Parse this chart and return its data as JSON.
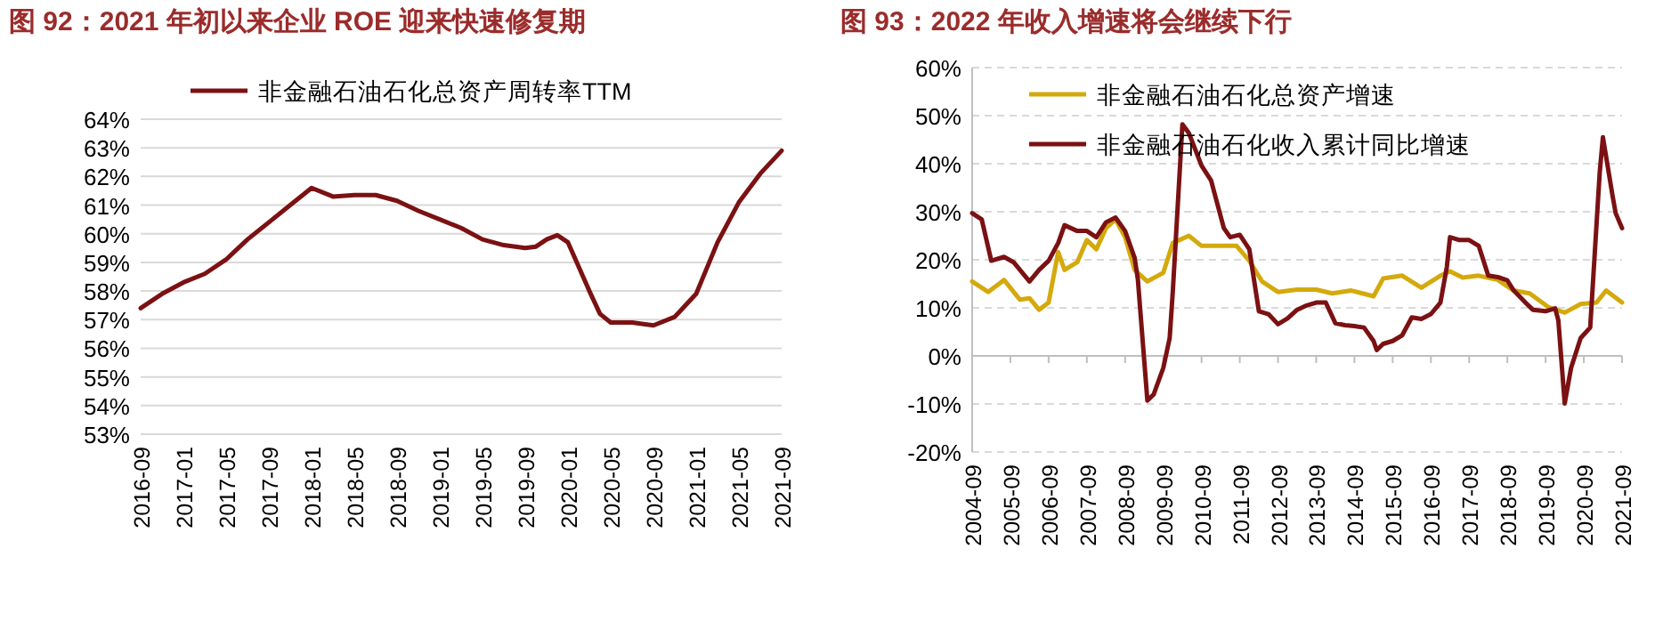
{
  "chart_data": [
    {
      "type": "line",
      "title": "图 92：2021 年初以来企业 ROE 迎来快速修复期",
      "legend": "top",
      "grid": "y",
      "xlim": [
        "2016-09",
        "2021-09"
      ],
      "xticks": [
        "2016-09",
        "2017-01",
        "2017-05",
        "2017-09",
        "2018-01",
        "2018-05",
        "2018-09",
        "2019-01",
        "2019-05",
        "2019-09",
        "2020-01",
        "2020-05",
        "2020-09",
        "2021-01",
        "2021-05",
        "2021-09"
      ],
      "ylim": [
        53,
        64
      ],
      "yticks": [
        {
          "value": 53,
          "label": "53%"
        },
        {
          "value": 54,
          "label": "54%"
        },
        {
          "value": 55,
          "label": "55%"
        },
        {
          "value": 56,
          "label": "56%"
        },
        {
          "value": 57,
          "label": "57%"
        },
        {
          "value": 58,
          "label": "58%"
        },
        {
          "value": 59,
          "label": "59%"
        },
        {
          "value": 60,
          "label": "60%"
        },
        {
          "value": 61,
          "label": "61%"
        },
        {
          "value": 62,
          "label": "62%"
        },
        {
          "value": 63,
          "label": "63%"
        },
        {
          "value": 64,
          "label": "64%"
        }
      ],
      "series": [
        {
          "name": "非金融石油石化总资产周转率TTM",
          "color": "#7b1113",
          "x": [
            "2016-09",
            "2016-11",
            "2017-01",
            "2017-03",
            "2017-05",
            "2017-07",
            "2017-09",
            "2017-11",
            "2018-01",
            "2018-03",
            "2018-05",
            "2018-07",
            "2018-09",
            "2018-11",
            "2019-01",
            "2019-03",
            "2019-05",
            "2019-07",
            "2019-09",
            "2019-10",
            "2019-11",
            "2019-12",
            "2020-01",
            "2020-03",
            "2020-04",
            "2020-05",
            "2020-07",
            "2020-09",
            "2020-11",
            "2021-01",
            "2021-03",
            "2021-05",
            "2021-07",
            "2021-09"
          ],
          "values": [
            57.4,
            57.9,
            58.3,
            58.6,
            59.1,
            59.8,
            60.4,
            61.0,
            61.6,
            61.3,
            61.35,
            61.35,
            61.15,
            60.8,
            60.5,
            60.2,
            59.8,
            59.6,
            59.5,
            59.55,
            59.8,
            59.95,
            59.7,
            58.0,
            57.2,
            56.9,
            56.9,
            56.8,
            57.1,
            57.9,
            59.7,
            61.1,
            62.1,
            62.9
          ]
        }
      ]
    },
    {
      "type": "line",
      "title": "图 93：2022 年收入增速将会继续下行",
      "legend": "top left",
      "grid": "y",
      "xlim": [
        "2004-09",
        "2021-09"
      ],
      "xticks": [
        "2004-09",
        "2005-09",
        "2006-09",
        "2007-09",
        "2008-09",
        "2009-09",
        "2010-09",
        "2011-09",
        "2012-09",
        "2013-09",
        "2014-09",
        "2015-09",
        "2016-09",
        "2017-09",
        "2018-09",
        "2019-09",
        "2020-09",
        "2021-09"
      ],
      "ylim": [
        -20,
        60
      ],
      "yticks": [
        {
          "value": -20,
          "label": "-20%"
        },
        {
          "value": -10,
          "label": "-10%"
        },
        {
          "value": 0,
          "label": "0%"
        },
        {
          "value": 10,
          "label": "10%"
        },
        {
          "value": 20,
          "label": "20%"
        },
        {
          "value": 30,
          "label": "30%"
        },
        {
          "value": 40,
          "label": "40%"
        },
        {
          "value": 50,
          "label": "50%"
        },
        {
          "value": 60,
          "label": "60%"
        }
      ],
      "series": [
        {
          "name": "非金融石油石化总资产增速",
          "color": "#d4a90c",
          "x": [
            "2004-09",
            "2005-02",
            "2005-07",
            "2005-12",
            "2006-03",
            "2006-06",
            "2006-09",
            "2006-12",
            "2007-02",
            "2007-06",
            "2007-09",
            "2007-12",
            "2008-03",
            "2008-06",
            "2008-09",
            "2008-12",
            "2009-04",
            "2009-09",
            "2009-12",
            "2010-05",
            "2010-09",
            "2011-04",
            "2011-08",
            "2011-12",
            "2012-04",
            "2012-09",
            "2013-03",
            "2013-09",
            "2014-02",
            "2014-08",
            "2015-03",
            "2015-06",
            "2015-12",
            "2016-06",
            "2016-12",
            "2017-03",
            "2017-07",
            "2017-12",
            "2018-06",
            "2018-11",
            "2019-04",
            "2019-10",
            "2020-03",
            "2020-08",
            "2021-01",
            "2021-04",
            "2021-09"
          ],
          "values": [
            15.5,
            13.3,
            15.8,
            11.7,
            12,
            9.6,
            11.1,
            21.6,
            17.9,
            19.5,
            24.1,
            22.2,
            26.6,
            28.4,
            24.7,
            17.9,
            15.5,
            17.3,
            23.5,
            25,
            22.9,
            22.9,
            22.9,
            19.8,
            15.5,
            13.3,
            13.8,
            13.8,
            13.0,
            13.6,
            12.4,
            16.1,
            16.7,
            14.2,
            16.7,
            17.6,
            16.3,
            16.7,
            15.8,
            13.6,
            13.0,
            10.1,
            9.0,
            10.8,
            11.1,
            13.6,
            11.1
          ]
        },
        {
          "name": "非金融石油石化收入累计同比增速",
          "color": "#7b1113",
          "x": [
            "2004-09",
            "2004-12",
            "2005-03",
            "2005-07",
            "2005-10",
            "2006-03",
            "2006-06",
            "2006-09",
            "2006-12",
            "2007-02",
            "2007-06",
            "2007-09",
            "2007-12",
            "2008-03",
            "2008-06",
            "2008-09",
            "2008-12",
            "2009-01",
            "2009-04",
            "2009-06",
            "2009-09",
            "2009-11",
            "2009-12",
            "2010-03",
            "2010-05",
            "2010-09",
            "2010-12",
            "2011-04",
            "2011-06",
            "2011-09",
            "2011-12",
            "2012-02",
            "2012-03",
            "2012-06",
            "2012-09",
            "2012-12",
            "2013-03",
            "2013-06",
            "2013-09",
            "2013-12",
            "2014-03",
            "2014-06",
            "2014-09",
            "2014-12",
            "2015-03",
            "2015-04",
            "2015-06",
            "2015-09",
            "2015-12",
            "2016-03",
            "2016-06",
            "2016-09",
            "2016-12",
            "2017-02",
            "2017-03",
            "2017-06",
            "2017-09",
            "2017-12",
            "2018-03",
            "2018-06",
            "2018-09",
            "2018-11",
            "2019-03",
            "2019-05",
            "2019-09",
            "2019-12",
            "2020-01",
            "2020-03",
            "2020-05",
            "2020-08",
            "2020-11",
            "2021-02",
            "2021-03",
            "2021-06",
            "2021-07",
            "2021-09"
          ],
          "values": [
            29.7,
            28.4,
            19.8,
            20.6,
            19.5,
            15.5,
            17.9,
            19.8,
            23.5,
            27.2,
            26,
            26,
            24.7,
            27.8,
            28.8,
            26,
            20.4,
            16,
            -9.3,
            -8,
            -2.5,
            3.7,
            13.6,
            48.2,
            46.4,
            39.6,
            36.5,
            26.6,
            24.7,
            25.2,
            22.2,
            13.6,
            9.3,
            8.7,
            6.6,
            7.8,
            9.6,
            10.5,
            11.1,
            11.1,
            6.8,
            6.4,
            6.2,
            5.9,
            3.1,
            1.2,
            2.5,
            3.1,
            4.3,
            8.0,
            7.7,
            8.7,
            11.1,
            18.5,
            24.7,
            24.1,
            24.1,
            22.9,
            16.7,
            16.4,
            15.7,
            13.6,
            10.9,
            9.6,
            9.3,
            9.9,
            7.4,
            -9.9,
            -2.5,
            3.7,
            5.9,
            38.3,
            45.5,
            33.4,
            29.7,
            26.6
          ]
        }
      ]
    }
  ]
}
